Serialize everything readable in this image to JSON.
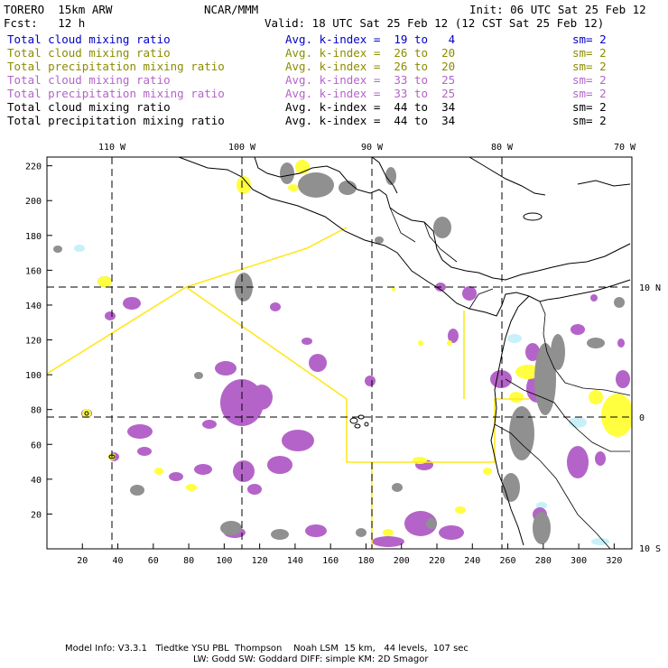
{
  "header": {
    "model": "TORERO  15km ARW",
    "center": "NCAR/MMM",
    "init": "Init: 06 UTC Sat 25 Feb 12",
    "fcst": "Fcst:   12 h",
    "valid": "Valid: 18 UTC Sat 25 Feb 12 (12 CST Sat 25 Feb 12)"
  },
  "legend": [
    {
      "field": "Total cloud mixing ratio",
      "kindex": "Avg. k-index =  19 to   4",
      "sm": "sm= 2",
      "color": "#0000c8"
    },
    {
      "field": "Total cloud mixing ratio",
      "kindex": "Avg. k-index =  26 to  20",
      "sm": "sm= 2",
      "color": "#8c8c00"
    },
    {
      "field": "Total precipitation mixing ratio",
      "kindex": "Avg. k-index =  26 to  20",
      "sm": "sm= 2",
      "color": "#8c8c00"
    },
    {
      "field": "Total cloud mixing ratio",
      "kindex": "Avg. k-index =  33 to  25",
      "sm": "sm= 2",
      "color": "#b464c8"
    },
    {
      "field": "Total precipitation mixing ratio",
      "kindex": "Avg. k-index =  33 to  25",
      "sm": "sm= 2",
      "color": "#b464c8"
    },
    {
      "field": "Total cloud mixing ratio",
      "kindex": "Avg. k-index =  44 to  34",
      "sm": "sm= 2",
      "color": "#000000"
    },
    {
      "field": "Total precipitation mixing ratio",
      "kindex": "Avg. k-index =  44 to  34",
      "sm": "sm= 2",
      "color": "#000000"
    }
  ],
  "axes": {
    "top_lon_labels": [
      "110 W",
      "100 W",
      "90 W",
      "80 W",
      "70 W"
    ],
    "right_lat_labels": [
      "10 N",
      "0",
      "10 S"
    ],
    "x_ticks": [
      "20",
      "40",
      "60",
      "80",
      "100",
      "120",
      "140",
      "160",
      "180",
      "200",
      "220",
      "240",
      "260",
      "280",
      "300",
      "320"
    ],
    "y_ticks": [
      "220",
      "200",
      "180",
      "160",
      "140",
      "120",
      "100",
      "80",
      "60",
      "40",
      "20"
    ],
    "x_range": [
      0,
      330
    ],
    "y_range": [
      0,
      225
    ]
  },
  "colors": {
    "cloud_yellow": "#ffff40",
    "precip_purple": "#b464c8",
    "high_gray": "#909090",
    "cyan_light": "#c8f0f8",
    "region_outline": "#ffe820"
  },
  "footer": {
    "line1": "Model Info: V3.3.1   Tiedtke YSU PBL  Thompson    Noah LSM  15 km,   44 levels,  107 sec",
    "line2": "LW: Godd SW: Goddard DIFF: simple KM: 2D Smagor"
  }
}
